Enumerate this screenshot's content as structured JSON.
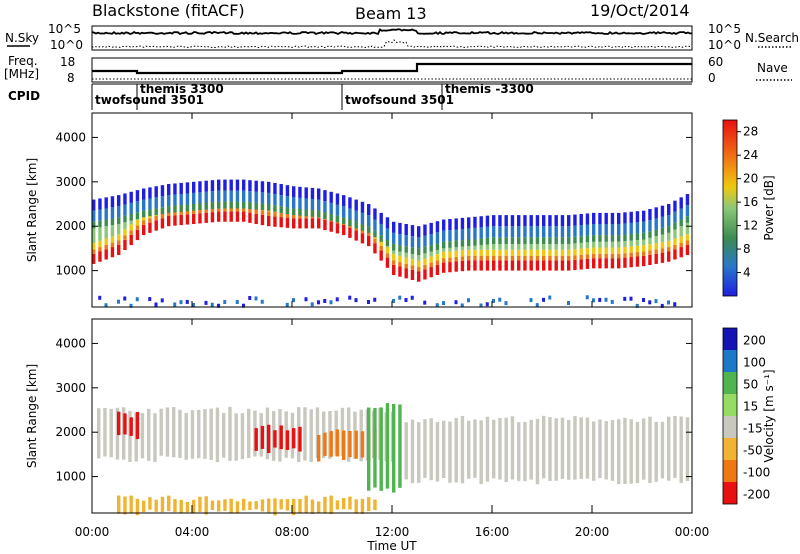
{
  "header": {
    "station": "Blackstone (fitACF)",
    "beam": "Beam 13",
    "date": "19/Oct/2014"
  },
  "top_panels": {
    "nsky_label": "N.Sky",
    "nsearch_label": "N.Search",
    "noise_ticks_left": [
      "10^5",
      "10^0"
    ],
    "noise_ticks_right": [
      "10^5",
      "10^0"
    ],
    "freq_label_1": "Freq.",
    "freq_label_2": "[MHz]",
    "freq_ticks": [
      "18",
      "8"
    ],
    "nave_label": "Nave",
    "nave_ticks": [
      "60",
      "0"
    ],
    "cpid_label": "CPID",
    "cpid_segments": [
      {
        "name": "twofsound 3501",
        "start_hour": 0.0,
        "end_hour": 1.8
      },
      {
        "name": "themis 3300",
        "start_hour": 1.8,
        "end_hour": 10.0
      },
      {
        "name": "twofsound 3501",
        "start_hour": 10.0,
        "end_hour": 14.0
      },
      {
        "name": "themis -3300",
        "start_hour": 14.0,
        "end_hour": 24.0
      }
    ]
  },
  "chart_data": [
    {
      "type": "heatmap",
      "title": "Power",
      "ylabel": "Slant Range [km]",
      "xlabel": "",
      "ylim": [
        180,
        4550
      ],
      "xlim": [
        0,
        24
      ],
      "y_ticks": [
        "1000",
        "2000",
        "3000",
        "4000"
      ],
      "colorbar_label": "Power [dB]",
      "colorbar_ticks": [
        "4",
        "8",
        "12",
        "16",
        "20",
        "24",
        "28"
      ],
      "colorbar_range": [
        0,
        30
      ],
      "colors": [
        "#1f1fe0",
        "#2878c8",
        "#3c8c50",
        "#8cc878",
        "#f0c810",
        "#f07814",
        "#e81010"
      ],
      "bands": [
        {
          "x": [
            0,
            1,
            2,
            3,
            4,
            5,
            6,
            7,
            8,
            9,
            10,
            11,
            12,
            13,
            14,
            15,
            16,
            17,
            18,
            19,
            20,
            21,
            22,
            23,
            24
          ],
          "y": [
            1300,
            1500,
            1950,
            2150,
            2200,
            2250,
            2250,
            2150,
            2100,
            2100,
            1950,
            1700,
            1050,
            900,
            1100,
            1150,
            1150,
            1150,
            1150,
            1150,
            1200,
            1200,
            1250,
            1350,
            1550
          ],
          "value": 26
        },
        {
          "x": [
            0,
            1,
            2,
            3,
            4,
            5,
            6,
            7,
            8,
            9,
            10,
            11,
            12,
            13,
            14,
            15,
            16,
            17,
            18,
            19,
            20,
            21,
            22,
            23,
            24
          ],
          "y": [
            2100,
            2200,
            2350,
            2450,
            2500,
            2550,
            2550,
            2500,
            2400,
            2350,
            2200,
            2000,
            1600,
            1500,
            1650,
            1700,
            1750,
            1750,
            1750,
            1750,
            1800,
            1800,
            1850,
            2000,
            2300
          ],
          "value": 10
        }
      ]
    },
    {
      "type": "heatmap",
      "title": "Velocity",
      "ylabel": "Slant Range [km]",
      "xlabel": "Time UT",
      "ylim": [
        180,
        4550
      ],
      "xlim": [
        0,
        24
      ],
      "x_ticks": [
        "00:00",
        "04:00",
        "08:00",
        "12:00",
        "16:00",
        "20:00",
        "00:00"
      ],
      "y_ticks": [
        "1000",
        "2000",
        "3000",
        "4000"
      ],
      "colorbar_label": "Velocity [m s⁻¹]",
      "colorbar_ticks": [
        "200",
        "100",
        "50",
        "15",
        "-15",
        "-50",
        "-100",
        "-200"
      ],
      "colors": [
        "#1414b4",
        "#1e78c8",
        "#50b450",
        "#96dc64",
        "#c8c8be",
        "#f0b432",
        "#f07814",
        "#e81010"
      ],
      "regions": [
        {
          "x_start": 0.2,
          "x_end": 12.0,
          "y_low": 1400,
          "y_high": 2500,
          "velocity": 0
        },
        {
          "x_start": 1.0,
          "x_end": 2.0,
          "y_low": 1900,
          "y_high": 2400,
          "velocity": -200
        },
        {
          "x_start": 6.5,
          "x_end": 8.5,
          "y_low": 1600,
          "y_high": 2100,
          "velocity": -200
        },
        {
          "x_start": 9.0,
          "x_end": 11.5,
          "y_low": 1400,
          "y_high": 2000,
          "velocity": -70
        },
        {
          "x_start": 11.0,
          "x_end": 12.5,
          "y_low": 700,
          "y_high": 2600,
          "velocity": 40
        },
        {
          "x_start": 12.5,
          "x_end": 23.8,
          "y_low": 900,
          "y_high": 2300,
          "velocity": 0
        },
        {
          "x_start": 1.0,
          "x_end": 11.5,
          "y_low": 200,
          "y_high": 500,
          "velocity": -50
        }
      ]
    }
  ]
}
